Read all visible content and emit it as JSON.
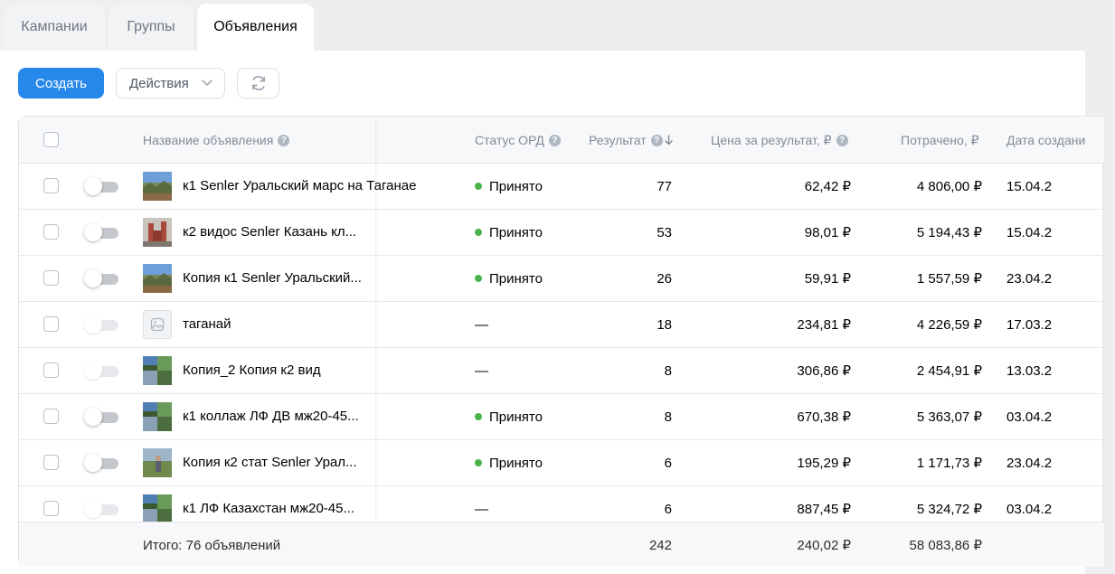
{
  "tabs": [
    {
      "label": "Кампании",
      "active": false
    },
    {
      "label": "Группы",
      "active": false
    },
    {
      "label": "Объявления",
      "active": true
    }
  ],
  "toolbar": {
    "create_label": "Создать",
    "actions_label": "Действия",
    "refresh_icon": "refresh-icon",
    "accent": "#2688eb"
  },
  "table": {
    "columns": {
      "name": "Название объявления",
      "ord": "Статус ОРД",
      "result": "Результат",
      "price": "Цена за результат, ₽",
      "spent": "Потрачено, ₽",
      "date": "Дата создани"
    },
    "status_color": "#4bb34b",
    "rows": [
      {
        "name": "к1 Senler Уральский марс на Таганае",
        "toggle_enabled": true,
        "thumb": "landscape",
        "ord": "Принято",
        "result": "77",
        "price": "62,42 ₽",
        "spent": "4 806,00 ₽",
        "date": "15.04.2"
      },
      {
        "name": "к2 видос Senler Казань кл...",
        "toggle_enabled": true,
        "thumb": "city",
        "ord": "Принято",
        "result": "53",
        "price": "98,01 ₽",
        "spent": "5 194,43 ₽",
        "date": "15.04.2"
      },
      {
        "name": "Копия к1 Senler Уральский...",
        "toggle_enabled": true,
        "thumb": "landscape",
        "ord": "Принято",
        "result": "26",
        "price": "59,91 ₽",
        "spent": "1 557,59 ₽",
        "date": "23.04.2"
      },
      {
        "name": "таганай",
        "toggle_enabled": false,
        "thumb": "placeholder",
        "ord": "—",
        "result": "18",
        "price": "234,81 ₽",
        "spent": "4 226,59 ₽",
        "date": "17.03.2"
      },
      {
        "name": "Копия_2 Копия к2 вид",
        "toggle_enabled": false,
        "thumb": "collage",
        "ord": "—",
        "result": "8",
        "price": "306,86 ₽",
        "spent": "2 454,91 ₽",
        "date": "13.03.2"
      },
      {
        "name": "к1 коллаж ЛФ ДВ мж20-45...",
        "toggle_enabled": true,
        "thumb": "collage",
        "ord": "Принято",
        "result": "8",
        "price": "670,38 ₽",
        "spent": "5 363,07 ₽",
        "date": "03.04.2"
      },
      {
        "name": "Копия к2 стат Senler Урал...",
        "toggle_enabled": true,
        "thumb": "person",
        "ord": "Принято",
        "result": "6",
        "price": "195,29 ₽",
        "spent": "1 171,73 ₽",
        "date": "23.04.2"
      },
      {
        "name": "к1 ЛФ Казахстан мж20-45...",
        "toggle_enabled": false,
        "thumb": "collage",
        "ord": "—",
        "result": "6",
        "price": "887,45 ₽",
        "spent": "5 324,72 ₽",
        "date": "03.04.2"
      }
    ],
    "footer": {
      "label": "Итого: 76 объявлений",
      "result": "242",
      "price": "240,02 ₽",
      "spent": "58 083,86 ₽"
    }
  }
}
